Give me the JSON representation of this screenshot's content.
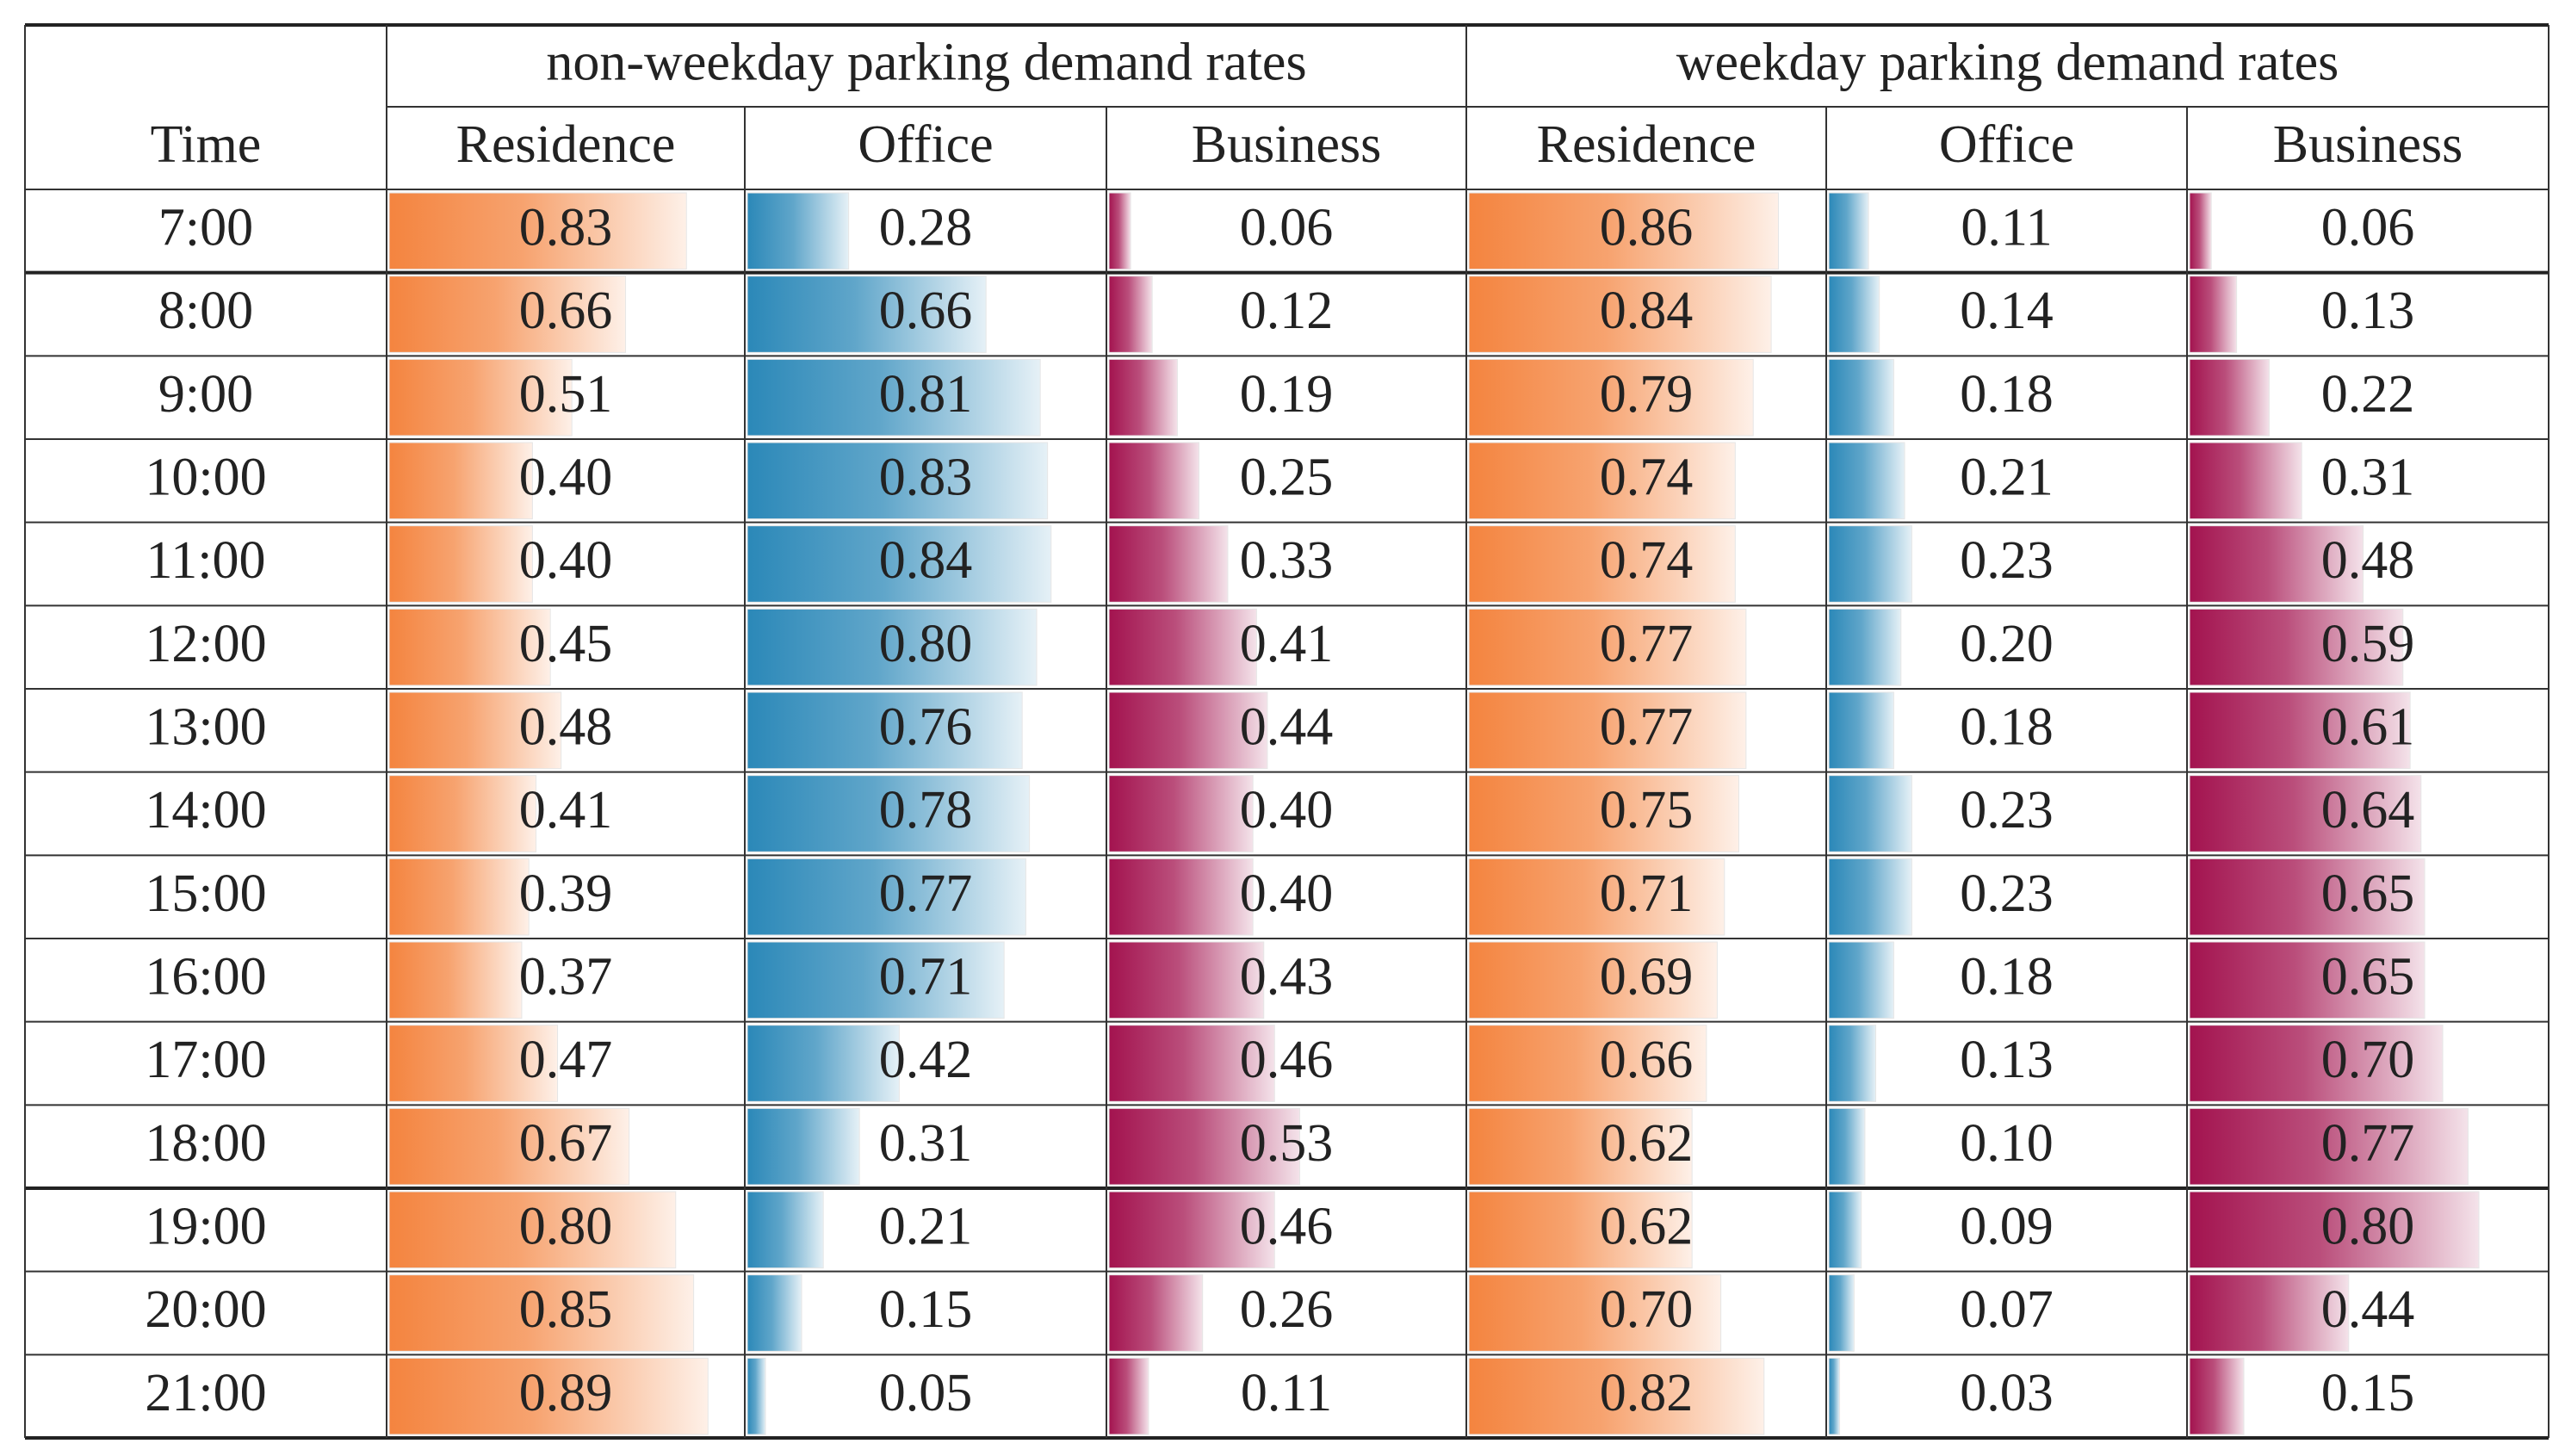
{
  "table": {
    "groups": [
      "non-weekday parking demand rates",
      "weekday parking demand rates"
    ],
    "columns": [
      "Time",
      "Residence",
      "Office",
      "Business",
      "Residence",
      "Office",
      "Business"
    ],
    "bar_colors": [
      "#f4843f",
      "#2b88b8",
      "#a3134f"
    ],
    "rows": [
      {
        "time": "7:00",
        "values": [
          0.83,
          0.28,
          0.06,
          0.86,
          0.11,
          0.06
        ],
        "value_labels": [
          "0.83",
          "0.28",
          "0.06",
          "0.86",
          "0.11",
          "0.06"
        ]
      },
      {
        "time": "8:00",
        "values": [
          0.66,
          0.66,
          0.12,
          0.84,
          0.14,
          0.13
        ],
        "value_labels": [
          "0.66",
          "0.66",
          "0.12",
          "0.84",
          "0.14",
          "0.13"
        ]
      },
      {
        "time": "9:00",
        "values": [
          0.51,
          0.81,
          0.19,
          0.79,
          0.18,
          0.22
        ],
        "value_labels": [
          "0.51",
          "0.81",
          "0.19",
          "0.79",
          "0.18",
          "0.22"
        ]
      },
      {
        "time": "10:00",
        "values": [
          0.4,
          0.83,
          0.25,
          0.74,
          0.21,
          0.31
        ],
        "value_labels": [
          "0.40",
          "0.83",
          "0.25",
          "0.74",
          "0.21",
          "0.31"
        ]
      },
      {
        "time": "11:00",
        "values": [
          0.4,
          0.84,
          0.33,
          0.74,
          0.23,
          0.48
        ],
        "value_labels": [
          "0.40",
          "0.84",
          "0.33",
          "0.74",
          "0.23",
          "0.48"
        ]
      },
      {
        "time": "12:00",
        "values": [
          0.45,
          0.8,
          0.41,
          0.77,
          0.2,
          0.59
        ],
        "value_labels": [
          "0.45",
          "0.80",
          "0.41",
          "0.77",
          "0.20",
          "0.59"
        ]
      },
      {
        "time": "13:00",
        "values": [
          0.48,
          0.76,
          0.44,
          0.77,
          0.18,
          0.61
        ],
        "value_labels": [
          "0.48",
          "0.76",
          "0.44",
          "0.77",
          "0.18",
          "0.61"
        ]
      },
      {
        "time": "14:00",
        "values": [
          0.41,
          0.78,
          0.4,
          0.75,
          0.23,
          0.64
        ],
        "value_labels": [
          "0.41",
          "0.78",
          "0.40",
          "0.75",
          "0.23",
          "0.64"
        ]
      },
      {
        "time": "15:00",
        "values": [
          0.39,
          0.77,
          0.4,
          0.71,
          0.23,
          0.65
        ],
        "value_labels": [
          "0.39",
          "0.77",
          "0.40",
          "0.71",
          "0.23",
          "0.65"
        ]
      },
      {
        "time": "16:00",
        "values": [
          0.37,
          0.71,
          0.43,
          0.69,
          0.18,
          0.65
        ],
        "value_labels": [
          "0.37",
          "0.71",
          "0.43",
          "0.69",
          "0.18",
          "0.65"
        ]
      },
      {
        "time": "17:00",
        "values": [
          0.47,
          0.42,
          0.46,
          0.66,
          0.13,
          0.7
        ],
        "value_labels": [
          "0.47",
          "0.42",
          "0.46",
          "0.66",
          "0.13",
          "0.70"
        ]
      },
      {
        "time": "18:00",
        "values": [
          0.67,
          0.31,
          0.53,
          0.62,
          0.1,
          0.77
        ],
        "value_labels": [
          "0.67",
          "0.31",
          "0.53",
          "0.62",
          "0.10",
          "0.77"
        ]
      },
      {
        "time": "19:00",
        "values": [
          0.8,
          0.21,
          0.46,
          0.62,
          0.09,
          0.8
        ],
        "value_labels": [
          "0.80",
          "0.21",
          "0.46",
          "0.62",
          "0.09",
          "0.80"
        ]
      },
      {
        "time": "20:00",
        "values": [
          0.85,
          0.15,
          0.26,
          0.7,
          0.07,
          0.44
        ],
        "value_labels": [
          "0.85",
          "0.15",
          "0.26",
          "0.70",
          "0.07",
          "0.44"
        ]
      },
      {
        "time": "21:00",
        "values": [
          0.89,
          0.05,
          0.11,
          0.82,
          0.03,
          0.15
        ],
        "value_labels": [
          "0.89",
          "0.05",
          "0.11",
          "0.82",
          "0.03",
          "0.15"
        ]
      }
    ]
  }
}
